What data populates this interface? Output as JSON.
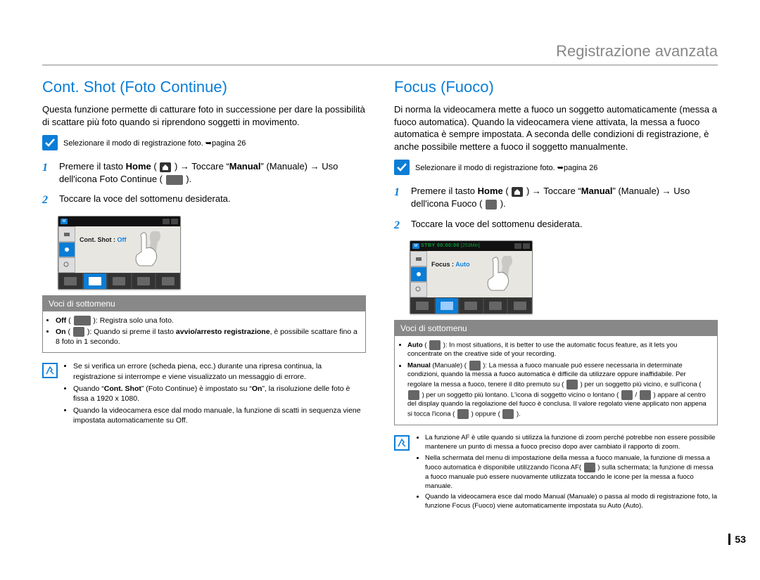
{
  "page_number": "53",
  "chapter_title": "Registrazione avanzata",
  "colors": {
    "accent": "#0b7dd6",
    "chapter_text": "#888888",
    "body_text": "#000000",
    "submenu_header_bg": "#888888",
    "submenu_header_text": "#ffffff",
    "border": "#888888"
  },
  "left": {
    "title": "Cont. Shot (Foto Continue)",
    "intro": "Questa funzione permette di catturare foto in successione per dare la possibilità di scattare più foto quando si riprendono soggetti in movimento.",
    "precheck": "Selezionare il modo di registrazione foto. ➥pagina 26",
    "steps": [
      {
        "num": "1",
        "html": "Premere il tasto <b>Home</b> ( <span class='inline-icon home' data-name='home-icon' data-interactable='false'><svg viewBox='0 0 10 10'><path d='M1 5 L5 1 L9 5 L9 9 L1 9 Z' fill='#fff'/></svg></span> ) → Toccare “<b>Manual</b>” (Manuale) → Uso dell'icona Foto Continue ( <span class='inline-icon wide' data-name='cont-shot-off-icon' data-interactable='false'></span> )."
      },
      {
        "num": "2",
        "html": "Toccare la voce del sottomenu desiderata."
      }
    ],
    "screenshot": {
      "label_key": "Cont. Shot :",
      "label_value": "Off",
      "top_left_badge": "M",
      "sidebar_icons": [
        "camera",
        "photo",
        "zoom",
        "play"
      ],
      "dock_count": 5,
      "dock_selected_index": 1
    },
    "submenu_header": "Voci di sottomenu",
    "submenu_items": [
      "<b>Off</b> ( <span class='inline-icon wide' data-name='cont-shot-off-small-icon' data-interactable='false'></span> ):  Registra solo una foto.",
      "<b>On</b> ( <span class='inline-icon' data-name='cont-shot-on-small-icon' data-interactable='false'></span> ): Quando si preme il tasto <b>avvio/arresto registrazione</b>, è possibile scattare fino a 8 foto in 1 secondo."
    ],
    "notes": [
      "Se si verifica un errore (scheda piena, ecc.) durante una ripresa continua, la registrazione si interrompe e viene visualizzato un messaggio di errore.",
      "Quando “<b>Cont. Shot</b>” (Foto Continue) è impostato su “<b>On</b>”, la risoluzione delle foto è fissa a 1920 x 1080.",
      "Quando la videocamera esce dal modo manuale, la funzione di scatti in sequenza viene impostata automaticamente su Off."
    ]
  },
  "right": {
    "title": "Focus (Fuoco)",
    "intro": "Di norma la videocamera mette a fuoco un soggetto automaticamente (messa a fuoco automatica). Quando la videocamera viene attivata, la messa a fuoco automatica è sempre impostata. A seconda delle condizioni di registrazione, è anche possibile mettere a fuoco il soggetto manualmente.",
    "precheck": "Selezionare il modo di registrazione foto. ➥pagina 26",
    "steps": [
      {
        "num": "1",
        "html": "Premere il tasto <b>Home</b> ( <span class='inline-icon home' data-name='home-icon' data-interactable='false'><svg viewBox='0 0 10 10'><path d='M1 5 L5 1 L9 5 L9 9 L1 9 Z' fill='#fff'/></svg></span> ) → Toccare “<b>Manual</b>” (Manuale) → Uso dell'icona Fuoco ( <span class='inline-icon' data-name='focus-icon' data-interactable='false'></span> )."
      },
      {
        "num": "2",
        "html": "Toccare la voce del sottomenu desiderata."
      }
    ],
    "screenshot": {
      "label_key": "Focus :",
      "label_value": "Auto",
      "top_left_badge": "M",
      "top_stby": "STBY 00:00:00",
      "top_time": "[253Min]",
      "sidebar_icons": [
        "camera",
        "photo",
        "zoom",
        "play"
      ],
      "dock_count": 5,
      "dock_selected_index": 1
    },
    "submenu_header": "Voci di sottomenu",
    "submenu_items": [
      "<b>Auto</b> ( <span class='inline-icon' data-name='focus-auto-small-icon' data-interactable='false'></span> ): In most situations, it is better to use the automatic focus feature, as it lets you concentrate on the creative side of your recording.",
      "<b>Manual</b> (Manuale) ( <span class='inline-icon' data-name='focus-manual-small-icon' data-interactable='false'></span> ): La messa a fuoco manuale può essere necessaria in determinate condizioni, quando la messa a fuoco automatica è difficile da utilizzare oppure inaffidabile. Per regolare la messa a fuoco, tenere il dito premuto su ( <span class='inline-icon' data-name='focus-near-icon' data-interactable='false'></span> ) per un soggetto più vicino, e sull'icona ( <span class='inline-icon' data-name='focus-far-icon' data-interactable='false'></span> ) per un soggetto più lontano. L'icona di soggetto vicino o lontano ( <span class='inline-icon' data-name='near-indicator-icon' data-interactable='false'></span> / <span class='inline-icon' data-name='far-indicator-icon' data-interactable='false'></span> ) appare al centro del display quando la regolazione del fuoco è conclusa. Il valore regolato viene applicato non appena si tocca l'icona ( <span class='inline-icon' data-name='focus-near-icon2' data-interactable='false'></span> ) oppure ( <span class='inline-icon' data-name='focus-far-icon2' data-interactable='false'></span> )."
    ],
    "notes": [
      "La funzione AF è utile quando si utilizza la funzione di zoom perché potrebbe non essere possibile mantenere un punto di messa a fuoco preciso dopo aver cambiato il rapporto di zoom.",
      "Nella schermata del menu di impostazione della messa a fuoco manuale, la funzione di messa a fuoco automatica è disponibile utilizzando l'icona AF( <span class='inline-icon' data-name='af-icon' data-interactable='false'></span> ) sulla schermata; la funzione di messa a fuoco manuale può essere nuovamente utilizzata toccando le icone per la messa a fuoco manuale.",
      "Quando la videocamera esce dal modo Manual (Manuale) o passa al modo di registrazione foto, la funzione Focus (Fuoco) viene automaticamente impostata su Auto (Auto)."
    ]
  }
}
